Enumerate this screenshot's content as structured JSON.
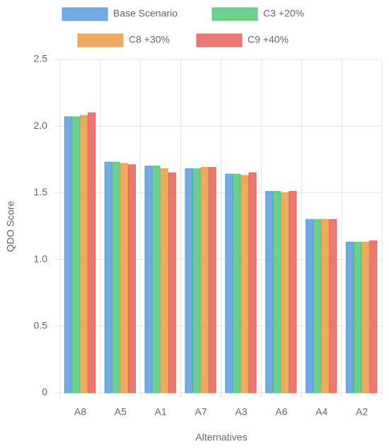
{
  "chart_data": {
    "type": "bar",
    "xlabel": "Alternatives",
    "ylabel": "QDO Score",
    "categories": [
      "A8",
      "A5",
      "A1",
      "A7",
      "A3",
      "A6",
      "A4",
      "A2"
    ],
    "series": [
      {
        "name": "Base Scenario",
        "color": "#5b9bdc",
        "values": [
          2.07,
          1.73,
          1.7,
          1.68,
          1.64,
          1.51,
          1.3,
          1.13
        ]
      },
      {
        "name": "C3 +20%",
        "color": "#52c878",
        "values": [
          2.07,
          1.73,
          1.7,
          1.68,
          1.64,
          1.51,
          1.3,
          1.13
        ]
      },
      {
        "name": "C8 +30%",
        "color": "#e99c45",
        "values": [
          2.08,
          1.72,
          1.68,
          1.69,
          1.63,
          1.5,
          1.3,
          1.13
        ]
      },
      {
        "name": "C9 +40%",
        "color": "#e8625a",
        "values": [
          2.1,
          1.71,
          1.65,
          1.69,
          1.65,
          1.51,
          1.3,
          1.14
        ]
      }
    ],
    "ylim": [
      0,
      2.5
    ],
    "yticks": [
      0,
      0.5,
      {
        "value": 1,
        "label": "1.0"
      },
      1.5,
      {
        "value": 2,
        "label": "2.0"
      },
      2.5
    ],
    "grid": true
  }
}
